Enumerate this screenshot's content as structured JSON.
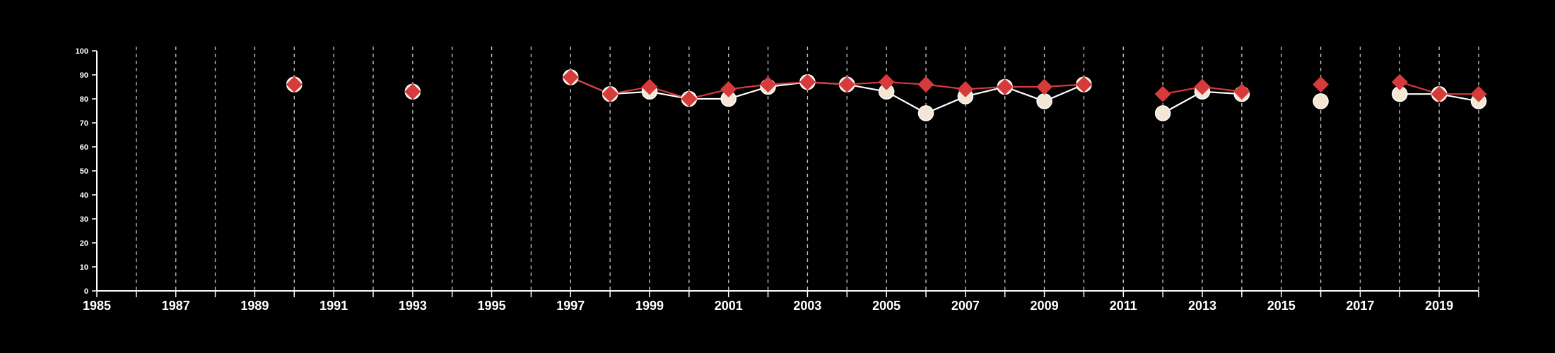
{
  "chart_data": {
    "type": "line",
    "background": "#000000",
    "xlim": [
      1985,
      2020
    ],
    "ylim": [
      0,
      100
    ],
    "x_tick_labels": [
      "1985",
      "1987",
      "1989",
      "1991",
      "1993",
      "1995",
      "1997",
      "1999",
      "2001",
      "2003",
      "2005",
      "2007",
      "2009",
      "2011",
      "2013",
      "2015",
      "2017",
      "2019"
    ],
    "y_tick_labels": [
      "0",
      "10",
      "20",
      "30",
      "40",
      "50",
      "60",
      "70",
      "80",
      "90",
      "100"
    ],
    "vertical_grid": "dashed, yearly",
    "series": [
      {
        "marker": "circle",
        "color": "#ffffff",
        "marker_fill": "#f3e6d4",
        "segments": [
          {
            "x": [
              1990
            ],
            "y": [
              86
            ]
          },
          {
            "x": [
              1993
            ],
            "y": [
              83
            ]
          },
          {
            "x": [
              1997,
              1998,
              1999,
              2000,
              2001,
              2002,
              2003,
              2004,
              2005,
              2006,
              2007,
              2008,
              2009,
              2010
            ],
            "y": [
              89,
              82,
              83,
              80,
              80,
              85,
              87,
              86,
              83,
              74,
              81,
              85,
              79,
              86
            ]
          },
          {
            "x": [
              2012,
              2013,
              2014
            ],
            "y": [
              74,
              83,
              82
            ]
          },
          {
            "x": [
              2016
            ],
            "y": [
              79
            ]
          },
          {
            "x": [
              2018,
              2019,
              2020
            ],
            "y": [
              82,
              82,
              79
            ]
          }
        ]
      },
      {
        "marker": "diamond",
        "color": "#d63a3a",
        "marker_fill": "#d63a3a",
        "segments": [
          {
            "x": [
              1990
            ],
            "y": [
              86
            ]
          },
          {
            "x": [
              1993
            ],
            "y": [
              83
            ]
          },
          {
            "x": [
              1997,
              1998,
              1999,
              2000,
              2001,
              2002,
              2003,
              2004,
              2005,
              2006,
              2007,
              2008,
              2009,
              2010
            ],
            "y": [
              89,
              82,
              85,
              80,
              84,
              86,
              87,
              86,
              87,
              86,
              84,
              85,
              85,
              86
            ]
          },
          {
            "x": [
              2012,
              2013,
              2014
            ],
            "y": [
              82,
              85,
              83
            ]
          },
          {
            "x": [
              2016
            ],
            "y": [
              86
            ]
          },
          {
            "x": [
              2018,
              2019,
              2020
            ],
            "y": [
              87,
              82,
              82
            ]
          }
        ]
      }
    ]
  }
}
